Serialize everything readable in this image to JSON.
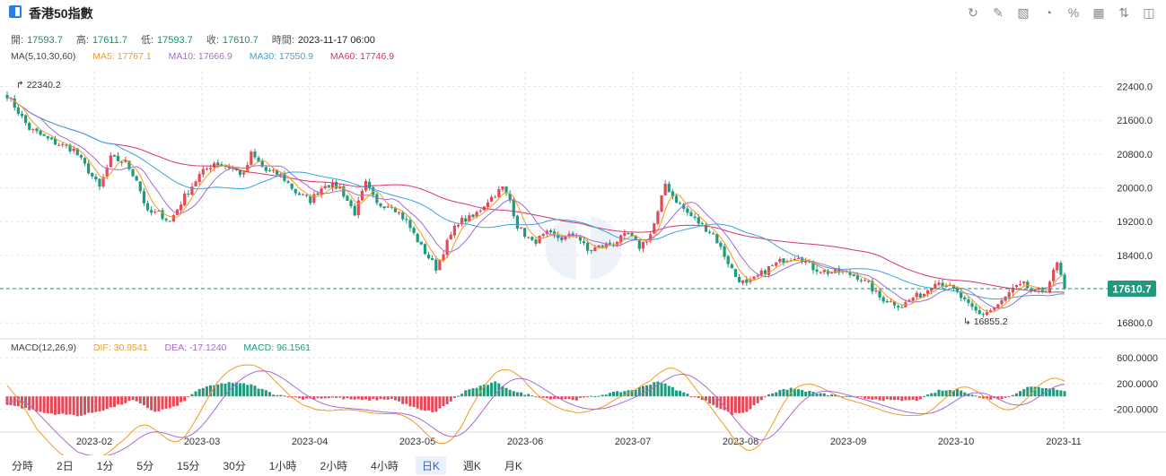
{
  "header": {
    "title": "香港50指數",
    "tools": [
      {
        "name": "refresh-icon",
        "glyph": "↻"
      },
      {
        "name": "draw-icon",
        "glyph": "✎"
      },
      {
        "name": "indicator-icon",
        "glyph": "▧"
      },
      {
        "name": "pie-icon",
        "glyph": "◔"
      },
      {
        "name": "percent-icon",
        "glyph": "%"
      },
      {
        "name": "grid-icon",
        "glyph": "▦"
      },
      {
        "name": "sort-icon",
        "glyph": "⇅"
      },
      {
        "name": "layout-icon",
        "glyph": "◫"
      }
    ]
  },
  "ohlc": {
    "open_label": "開:",
    "open": "17593.7",
    "high_label": "高:",
    "high": "17611.7",
    "low_label": "低:",
    "low": "17593.7",
    "close_label": "收:",
    "close": "17610.7",
    "time_label": "時間:",
    "time": "2023-11-17 06:00"
  },
  "ma_legend": {
    "label": "MA(5,10,30,60)",
    "ma5": "MA5: 17767.1",
    "ma10": "MA10: 17666.9",
    "ma30": "MA30: 17550.9",
    "ma60": "MA60: 17746.9"
  },
  "macd_legend": {
    "label": "MACD(12,26,9)",
    "dif": "DIF: 30.9541",
    "dea": "DEA: -17.1240",
    "macd": "MACD: 96.1561"
  },
  "colors": {
    "up": "#e24a5a",
    "down": "#1f9a7c",
    "ma5": "#f29a1f",
    "ma10": "#a66bd0",
    "ma30": "#3ba3e0",
    "ma60": "#d6336c",
    "grid": "#e6e6e6",
    "last_price_bg": "#1f9a7c"
  },
  "chart_data": {
    "type": "candlestick",
    "y_axis": {
      "ticks": [
        22400,
        21600,
        20800,
        20000,
        19200,
        18400,
        17600,
        16800
      ],
      "tick_labels": [
        "22400.0",
        "21600.0",
        "20800.0",
        "20000.0",
        "19200.0",
        "18400.0",
        "17600.0",
        "16800.0"
      ],
      "range": [
        16550,
        22750
      ]
    },
    "macd_axis": {
      "ticks": [
        600,
        200,
        -200
      ],
      "tick_labels": [
        "600.0000",
        "200.0000",
        "-200.0000"
      ],
      "range": [
        -500,
        700
      ]
    },
    "x_axis": {
      "labels": [
        "2023-02",
        "2023-03",
        "2023-04",
        "2023-05",
        "2023-06",
        "2023-07",
        "2023-08",
        "2023-09",
        "2023-10",
        "2023-11"
      ]
    },
    "max_label": "22340.2",
    "min_label": "16855.2",
    "last_price": 17610.7,
    "last_price_label": "17610.7",
    "close_anchors": [
      [
        0,
        22200
      ],
      [
        6,
        21400
      ],
      [
        12,
        21100
      ],
      [
        18,
        20900
      ],
      [
        22,
        20400
      ],
      [
        25,
        20000
      ],
      [
        28,
        20700
      ],
      [
        32,
        20600
      ],
      [
        35,
        20200
      ],
      [
        38,
        19400
      ],
      [
        41,
        19400
      ],
      [
        44,
        19200
      ],
      [
        48,
        19800
      ],
      [
        52,
        20300
      ],
      [
        56,
        20600
      ],
      [
        60,
        20500
      ],
      [
        64,
        20300
      ],
      [
        66,
        20800
      ],
      [
        70,
        20400
      ],
      [
        74,
        20300
      ],
      [
        78,
        19900
      ],
      [
        82,
        19700
      ],
      [
        86,
        20100
      ],
      [
        90,
        20000
      ],
      [
        94,
        19400
      ],
      [
        97,
        20100
      ],
      [
        100,
        19600
      ],
      [
        104,
        19600
      ],
      [
        108,
        19200
      ],
      [
        112,
        18600
      ],
      [
        116,
        18100
      ],
      [
        119,
        18700
      ],
      [
        122,
        19200
      ],
      [
        126,
        19300
      ],
      [
        130,
        19700
      ],
      [
        134,
        20000
      ],
      [
        136,
        19700
      ],
      [
        138,
        19100
      ],
      [
        142,
        18700
      ],
      [
        146,
        18900
      ],
      [
        150,
        18800
      ],
      [
        154,
        18900
      ],
      [
        157,
        18500
      ],
      [
        160,
        18600
      ],
      [
        164,
        18700
      ],
      [
        168,
        18900
      ],
      [
        171,
        18600
      ],
      [
        174,
        18900
      ],
      [
        176,
        19400
      ],
      [
        178,
        20100
      ],
      [
        180,
        19800
      ],
      [
        184,
        19400
      ],
      [
        188,
        19100
      ],
      [
        191,
        18900
      ],
      [
        194,
        18400
      ],
      [
        197,
        17900
      ],
      [
        200,
        17700
      ],
      [
        203,
        17900
      ],
      [
        206,
        18100
      ],
      [
        210,
        18300
      ],
      [
        214,
        18400
      ],
      [
        218,
        18100
      ],
      [
        222,
        18000
      ],
      [
        226,
        18000
      ],
      [
        230,
        17900
      ],
      [
        233,
        17700
      ],
      [
        236,
        17400
      ],
      [
        239,
        17300
      ],
      [
        242,
        17200
      ],
      [
        245,
        17400
      ],
      [
        248,
        17500
      ],
      [
        251,
        17800
      ],
      [
        254,
        17700
      ],
      [
        257,
        17500
      ],
      [
        260,
        17200
      ],
      [
        263,
        17000
      ],
      [
        266,
        17100
      ],
      [
        269,
        17300
      ],
      [
        272,
        17600
      ],
      [
        275,
        17700
      ],
      [
        278,
        17500
      ],
      [
        281,
        17600
      ],
      [
        284,
        18200
      ],
      [
        286,
        17600
      ]
    ],
    "macd_anchors": [
      [
        0,
        -120
      ],
      [
        10,
        -260
      ],
      [
        20,
        -300
      ],
      [
        28,
        -180
      ],
      [
        34,
        -60
      ],
      [
        40,
        -240
      ],
      [
        46,
        -150
      ],
      [
        52,
        120
      ],
      [
        60,
        220
      ],
      [
        66,
        180
      ],
      [
        72,
        40
      ],
      [
        80,
        -40
      ],
      [
        88,
        -20
      ],
      [
        96,
        -60
      ],
      [
        104,
        -40
      ],
      [
        112,
        -220
      ],
      [
        116,
        -240
      ],
      [
        124,
        90
      ],
      [
        132,
        220
      ],
      [
        138,
        60
      ],
      [
        146,
        -30
      ],
      [
        154,
        -50
      ],
      [
        162,
        40
      ],
      [
        170,
        110
      ],
      [
        176,
        240
      ],
      [
        182,
        80
      ],
      [
        190,
        -100
      ],
      [
        196,
        -280
      ],
      [
        200,
        -240
      ],
      [
        206,
        40
      ],
      [
        212,
        130
      ],
      [
        220,
        40
      ],
      [
        230,
        -20
      ],
      [
        240,
        -70
      ],
      [
        246,
        -60
      ],
      [
        252,
        90
      ],
      [
        258,
        100
      ],
      [
        264,
        -40
      ],
      [
        270,
        -30
      ],
      [
        276,
        150
      ],
      [
        282,
        130
      ],
      [
        286,
        96
      ]
    ]
  },
  "tabs": [
    {
      "label": "分時",
      "active": false
    },
    {
      "label": "2日",
      "active": false
    },
    {
      "label": "1分",
      "active": false
    },
    {
      "label": "5分",
      "active": false
    },
    {
      "label": "15分",
      "active": false
    },
    {
      "label": "30分",
      "active": false
    },
    {
      "label": "1小時",
      "active": false
    },
    {
      "label": "2小時",
      "active": false
    },
    {
      "label": "4小時",
      "active": false
    },
    {
      "label": "日K",
      "active": true
    },
    {
      "label": "週K",
      "active": false
    },
    {
      "label": "月K",
      "active": false
    }
  ]
}
